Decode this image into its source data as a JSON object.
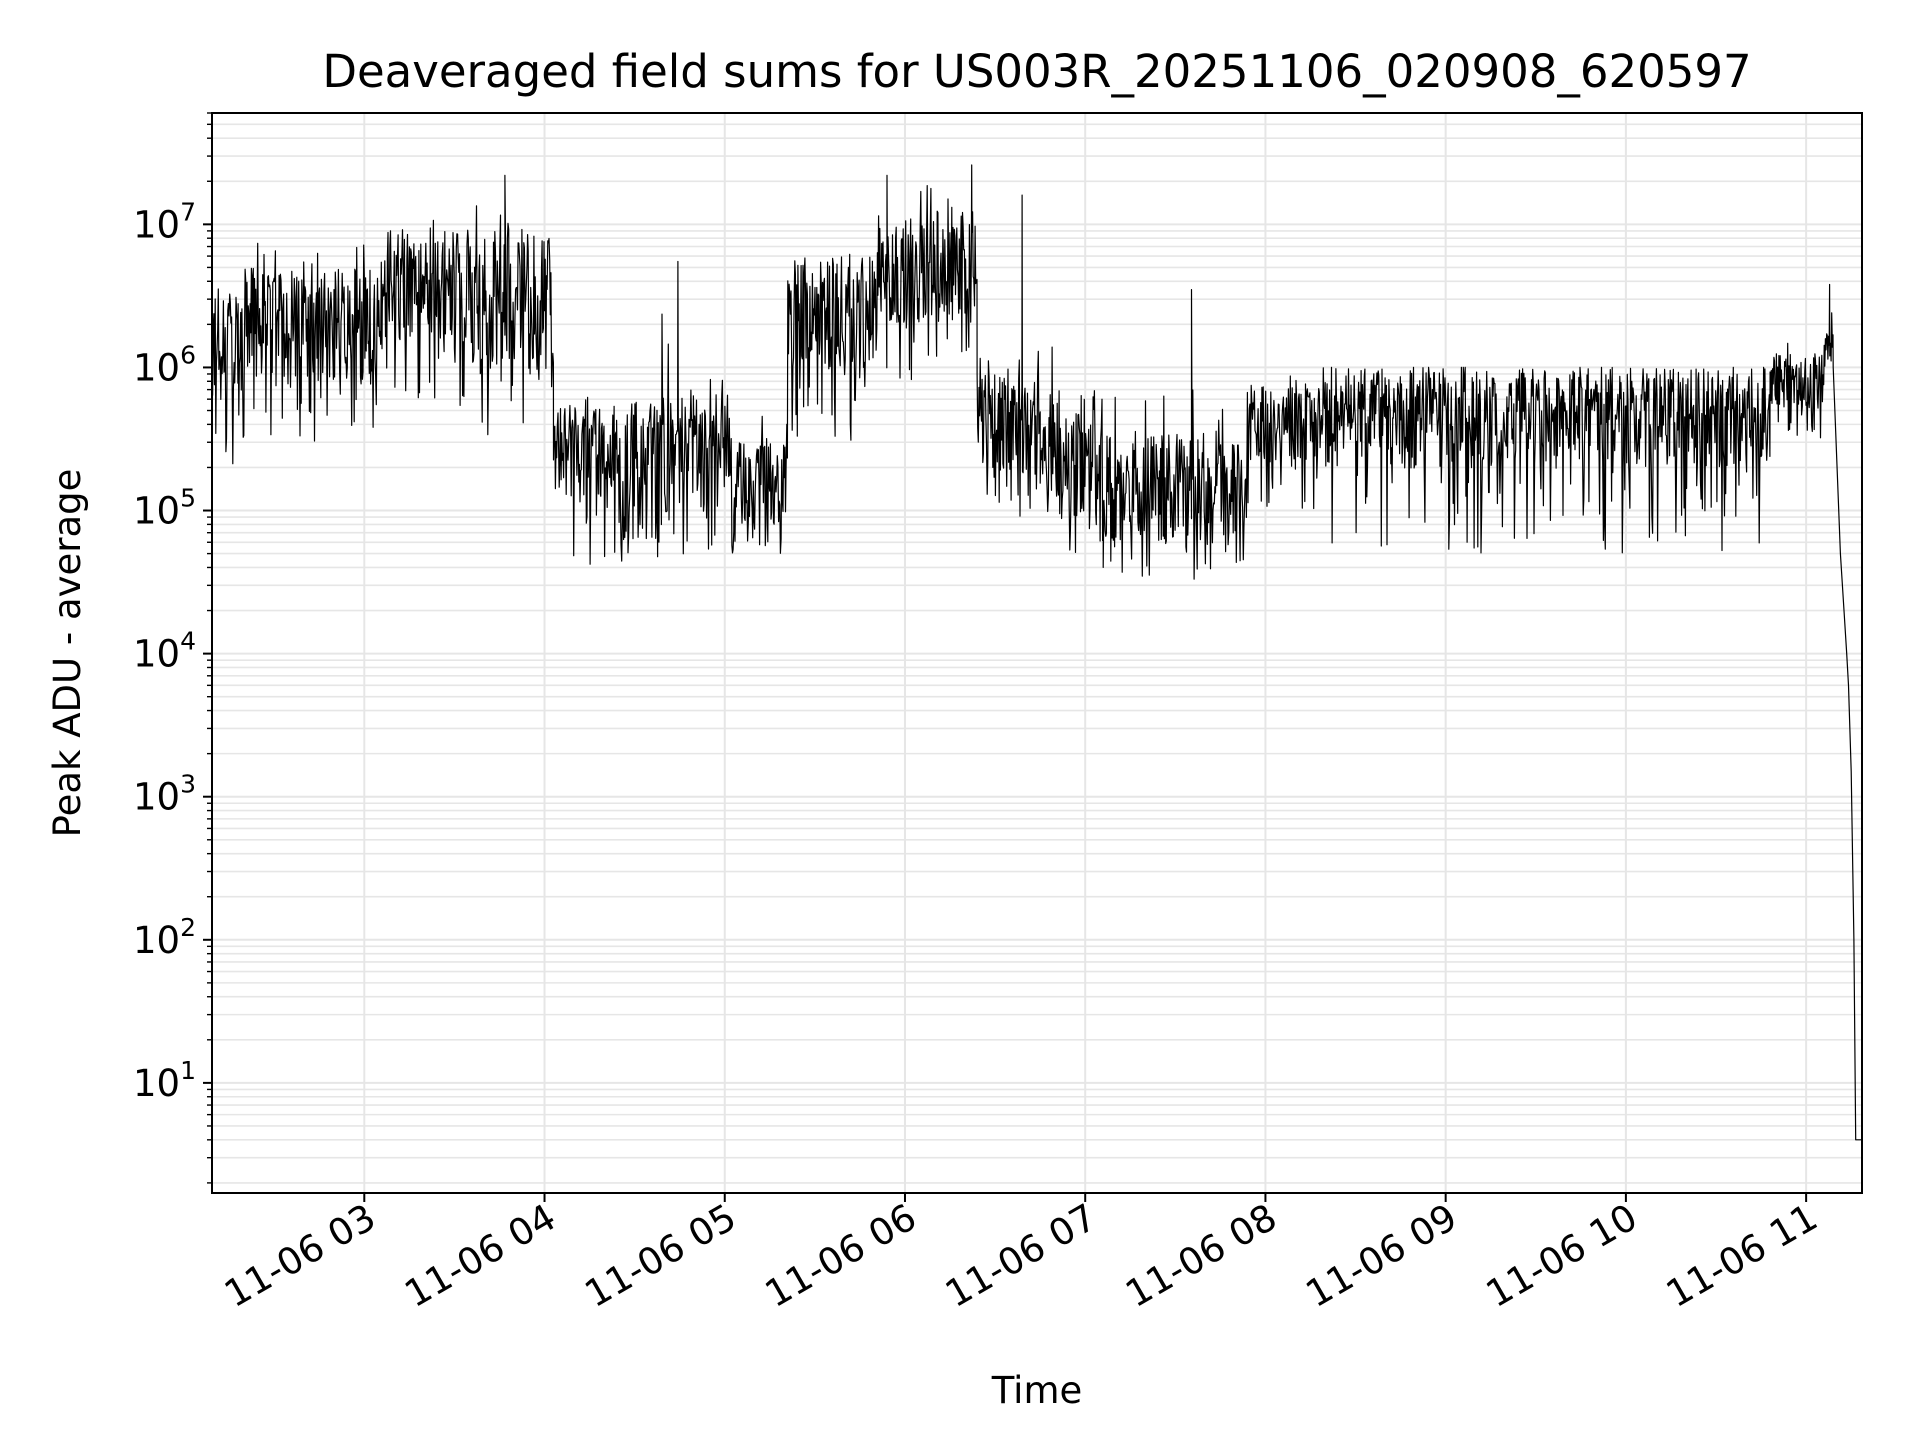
{
  "chart_data": {
    "type": "line",
    "title": "Deaveraged field sums for US003R_20251106_020908_620597",
    "xlabel": "Time",
    "ylabel": "Peak ADU - average",
    "yscale": "log",
    "ylim": [
      1.7,
      60000000
    ],
    "xlim_hours": [
      2.155,
      11.31
    ],
    "grid": true,
    "x_ticks": [
      {
        "hour": 3,
        "label": "11-06 03"
      },
      {
        "hour": 4,
        "label": "11-06 04"
      },
      {
        "hour": 5,
        "label": "11-06 05"
      },
      {
        "hour": 6,
        "label": "11-06 06"
      },
      {
        "hour": 7,
        "label": "11-06 07"
      },
      {
        "hour": 8,
        "label": "11-06 08"
      },
      {
        "hour": 9,
        "label": "11-06 09"
      },
      {
        "hour": 10,
        "label": "11-06 10"
      },
      {
        "hour": 11,
        "label": "11-06 11"
      }
    ],
    "y_ticks": [
      {
        "value": 10,
        "base": "10",
        "exp": "1"
      },
      {
        "value": 100,
        "base": "10",
        "exp": "2"
      },
      {
        "value": 1000,
        "base": "10",
        "exp": "3"
      },
      {
        "value": 10000,
        "base": "10",
        "exp": "4"
      },
      {
        "value": 100000,
        "base": "10",
        "exp": "5"
      },
      {
        "value": 1000000,
        "base": "10",
        "exp": "6"
      },
      {
        "value": 10000000,
        "base": "10",
        "exp": "7"
      }
    ],
    "series": [
      {
        "name": "field sums",
        "color": "#000000",
        "segments": [
          {
            "t0": 2.155,
            "t1": 2.3,
            "median": 1500000,
            "hi": 5000000,
            "lo": 200000
          },
          {
            "t0": 2.3,
            "t1": 3.1,
            "median": 2000000,
            "hi": 8000000,
            "lo": 300000
          },
          {
            "t0": 3.1,
            "t1": 3.5,
            "median": 3500000,
            "hi": 13000000,
            "lo": 600000
          },
          {
            "t0": 3.5,
            "t1": 4.05,
            "median": 3000000,
            "hi": 18000000,
            "lo": 300000
          },
          {
            "t0": 4.05,
            "t1": 4.4,
            "median": 250000,
            "hi": 700000,
            "lo": 40000
          },
          {
            "t0": 4.4,
            "t1": 4.7,
            "median": 200000,
            "hi": 2500000,
            "lo": 35000
          },
          {
            "t0": 4.7,
            "t1": 5.05,
            "median": 300000,
            "hi": 900000,
            "lo": 45000
          },
          {
            "t0": 5.05,
            "t1": 5.35,
            "median": 150000,
            "hi": 600000,
            "lo": 50000
          },
          {
            "t0": 5.35,
            "t1": 5.85,
            "median": 2500000,
            "hi": 9000000,
            "lo": 300000
          },
          {
            "t0": 5.85,
            "t1": 6.4,
            "median": 5000000,
            "hi": 20000000,
            "lo": 800000
          },
          {
            "t0": 6.4,
            "t1": 6.75,
            "median": 400000,
            "hi": 1500000,
            "lo": 90000
          },
          {
            "t0": 6.75,
            "t1": 7.1,
            "median": 250000,
            "hi": 2000000,
            "lo": 50000
          },
          {
            "t0": 7.1,
            "t1": 7.9,
            "median": 150000,
            "hi": 800000,
            "lo": 32000
          },
          {
            "t0": 7.9,
            "t1": 8.3,
            "median": 400000,
            "hi": 900000,
            "lo": 100000
          },
          {
            "t0": 8.3,
            "t1": 10.8,
            "median": 450000,
            "hi": 1000000,
            "lo": 50000
          },
          {
            "t0": 10.8,
            "t1": 11.1,
            "median": 800000,
            "hi": 1500000,
            "lo": 300000
          },
          {
            "t0": 11.1,
            "t1": 11.15,
            "median": 1300000,
            "hi": 2500000,
            "lo": 700000
          }
        ],
        "spikes": [
          {
            "hour": 3.78,
            "value": 22000000
          },
          {
            "hour": 4.74,
            "value": 5500000
          },
          {
            "hour": 5.9,
            "value": 22000000
          },
          {
            "hour": 6.37,
            "value": 26000000
          },
          {
            "hour": 6.65,
            "value": 16000000
          },
          {
            "hour": 7.59,
            "value": 3500000
          },
          {
            "hour": 11.13,
            "value": 3800000
          }
        ],
        "tail": [
          {
            "hour": 11.15,
            "value": 1000000
          },
          {
            "hour": 11.19,
            "value": 50000
          },
          {
            "hour": 11.21,
            "value": 20000
          },
          {
            "hour": 11.225,
            "value": 10000
          },
          {
            "hour": 11.235,
            "value": 6000
          },
          {
            "hour": 11.25,
            "value": 1500
          },
          {
            "hour": 11.265,
            "value": 100
          },
          {
            "hour": 11.275,
            "value": 4
          },
          {
            "hour": 11.31,
            "value": 4
          }
        ]
      }
    ]
  }
}
